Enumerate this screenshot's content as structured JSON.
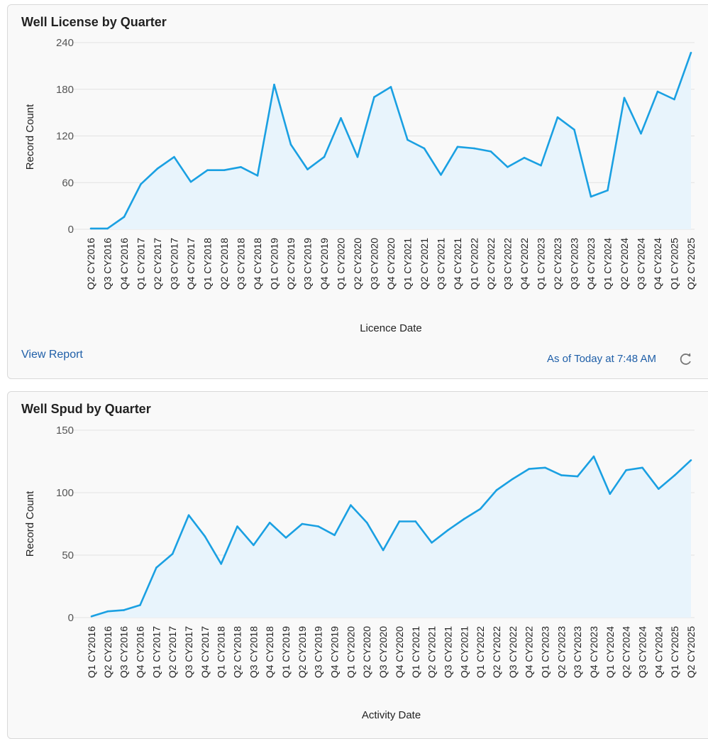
{
  "colors": {
    "line": "#1aa0e2",
    "area": "#e8f4fc",
    "grid": "#e2e2e2",
    "link": "#1f5fa8"
  },
  "footer": {
    "view_report": "View Report",
    "as_of": "As of Today at 7:48 AM",
    "refresh_icon": "refresh-icon"
  },
  "chart_data": [
    {
      "type": "area",
      "title": "Well License by Quarter",
      "xlabel": "Licence Date",
      "ylabel": "Record Count",
      "ylim": [
        0,
        240
      ],
      "yticks": [
        0,
        60,
        120,
        180,
        240
      ],
      "grid": true,
      "categories": [
        "Q2 CY2016",
        "Q3 CY2016",
        "Q4 CY2016",
        "Q1 CY2017",
        "Q2 CY2017",
        "Q3 CY2017",
        "Q4 CY2017",
        "Q1 CY2018",
        "Q2 CY2018",
        "Q3 CY2018",
        "Q4 CY2018",
        "Q1 CY2019",
        "Q2 CY2019",
        "Q3 CY2019",
        "Q4 CY2019",
        "Q1 CY2020",
        "Q2 CY2020",
        "Q3 CY2020",
        "Q4 CY2020",
        "Q1 CY2021",
        "Q2 CY2021",
        "Q3 CY2021",
        "Q4 CY2021",
        "Q1 CY2022",
        "Q2 CY2022",
        "Q3 CY2022",
        "Q4 CY2022",
        "Q1 CY2023",
        "Q2 CY2023",
        "Q3 CY2023",
        "Q4 CY2023",
        "Q1 CY2024",
        "Q2 CY2024",
        "Q3 CY2024",
        "Q4 CY2024",
        "Q1 CY2025",
        "Q2 CY2025"
      ],
      "values": [
        1,
        1,
        16,
        58,
        78,
        93,
        61,
        76,
        76,
        80,
        69,
        186,
        109,
        77,
        93,
        143,
        93,
        170,
        183,
        115,
        104,
        70,
        106,
        104,
        100,
        80,
        92,
        82,
        144,
        128,
        42,
        50,
        169,
        123,
        177,
        167,
        227
      ]
    },
    {
      "type": "area",
      "title": "Well Spud by Quarter",
      "xlabel": "Activity Date",
      "ylabel": "Record Count",
      "ylim": [
        0,
        150
      ],
      "yticks": [
        0,
        50,
        100,
        150
      ],
      "grid": true,
      "categories": [
        "Q1 CY2016",
        "Q2 CY2016",
        "Q3 CY2016",
        "Q4 CY2016",
        "Q1 CY2017",
        "Q2 CY2017",
        "Q3 CY2017",
        "Q4 CY2017",
        "Q1 CY2018",
        "Q2 CY2018",
        "Q3 CY2018",
        "Q4 CY2018",
        "Q1 CY2019",
        "Q2 CY2019",
        "Q3 CY2019",
        "Q4 CY2019",
        "Q1 CY2020",
        "Q2 CY2020",
        "Q3 CY2020",
        "Q4 CY2020",
        "Q1 CY2021",
        "Q2 CY2021",
        "Q3 CY2021",
        "Q4 CY2021",
        "Q1 CY2022",
        "Q2 CY2022",
        "Q3 CY2022",
        "Q4 CY2022",
        "Q1 CY2023",
        "Q2 CY2023",
        "Q3 CY2023",
        "Q4 CY2023",
        "Q1 CY2024",
        "Q2 CY2024",
        "Q3 CY2024",
        "Q4 CY2024",
        "Q1 CY2025",
        "Q2 CY2025"
      ],
      "values": [
        1,
        5,
        6,
        10,
        40,
        51,
        82,
        65,
        43,
        73,
        58,
        76,
        64,
        75,
        73,
        66,
        90,
        76,
        54,
        77,
        77,
        60,
        70,
        79,
        87,
        102,
        111,
        119,
        120,
        114,
        113,
        129,
        99,
        118,
        120,
        103,
        114,
        126
      ]
    }
  ]
}
